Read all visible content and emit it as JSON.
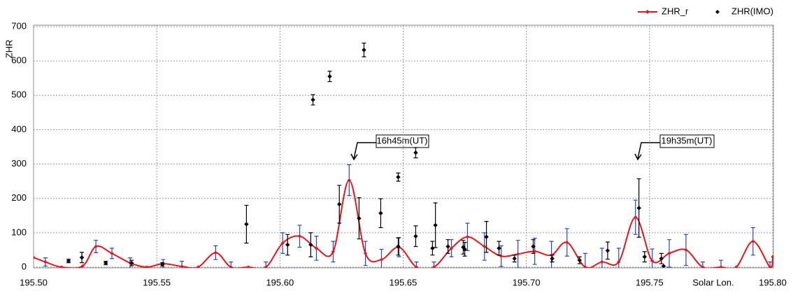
{
  "chart_data": {
    "type": "line",
    "y_label": "ZHR",
    "x_label": "Solar Lon.",
    "xlim": [
      195.5,
      195.8
    ],
    "ylim": [
      0,
      700
    ],
    "xticks": [
      {
        "value": 195.5,
        "label": "195.50"
      },
      195.55,
      {
        "value": 195.6,
        "label": "195.60"
      },
      195.65,
      {
        "value": 195.7,
        "label": "195.70"
      },
      195.75,
      {
        "value": 195.8,
        "label": "195.80"
      }
    ],
    "yticks": [
      0,
      100,
      200,
      300,
      400,
      500,
      600,
      700
    ],
    "grid": true,
    "legend": "top-right",
    "annotations": [
      "16h45m(UT)",
      "19h35m(UT)"
    ],
    "series": [
      {
        "name": "ZHR_r",
        "type": "line",
        "color": "#e8141a",
        "error_color": "#2444d4",
        "x": [
          195.5,
          195.5048,
          195.5114,
          195.5199,
          195.5253,
          195.5318,
          195.5392,
          195.546,
          195.5526,
          195.5602,
          195.5668,
          195.5739,
          195.5801,
          195.5872,
          195.5943,
          195.6011,
          195.608,
          195.6148,
          195.6216,
          195.6281,
          195.6347,
          195.6412,
          195.6483,
          195.6554,
          195.6625,
          195.6696,
          195.6761,
          195.683,
          195.6898,
          195.6966,
          195.7034,
          195.7102,
          195.7165,
          195.7239,
          195.7307,
          195.7375,
          195.7443,
          195.7511,
          195.758,
          195.7648,
          195.7716,
          195.779,
          195.7852,
          195.792,
          195.7989,
          195.8
        ],
        "values": [
          28,
          15,
          0,
          3,
          60,
          40,
          12,
          0,
          10,
          2,
          0,
          42,
          0,
          0,
          0,
          70,
          90,
          55,
          45,
          253,
          40,
          22,
          58,
          0,
          0,
          55,
          88,
          60,
          32,
          38,
          46,
          35,
          72,
          0,
          15,
          15,
          145,
          18,
          40,
          50,
          0,
          0,
          0,
          75,
          0,
          30
        ],
        "errors": [
          null,
          12,
          null,
          null,
          18,
          15,
          15,
          null,
          12,
          15,
          null,
          20,
          15,
          null,
          15,
          30,
          32,
          35,
          30,
          45,
          35,
          30,
          28,
          15,
          15,
          25,
          40,
          40,
          30,
          40,
          38,
          40,
          40,
          40,
          40,
          40,
          50,
          35,
          40,
          45,
          15,
          20,
          null,
          40,
          15,
          null
        ]
      },
      {
        "name": "ZHR(IMO)",
        "type": "scatter",
        "color": "#000000",
        "error_color": "#000000",
        "x": [
          195.5142,
          195.5196,
          195.5293,
          195.5398,
          195.5523,
          195.5864,
          195.6031,
          195.6125,
          195.6134,
          195.6202,
          195.6241,
          195.6321,
          195.6341,
          195.6409,
          195.648,
          195.648,
          195.6551,
          195.6551,
          195.6619,
          195.6631,
          195.6682,
          195.6744,
          195.675,
          195.6838,
          195.6889,
          195.6952,
          195.7028,
          195.7105,
          195.7216,
          195.733,
          195.7457,
          195.748,
          195.7548,
          195.7557
        ],
        "values": [
          18,
          28,
          12,
          12,
          8,
          125,
          65,
          65,
          487,
          555,
          183,
          142,
          632,
          157,
          262,
          60,
          333,
          90,
          55,
          122,
          60,
          58,
          52,
          88,
          55,
          25,
          60,
          25,
          20,
          48,
          172,
          30,
          25,
          3
        ],
        "errors": [
          5,
          15,
          5,
          8,
          5,
          55,
          30,
          35,
          15,
          15,
          55,
          60,
          20,
          42,
          12,
          25,
          15,
          30,
          20,
          65,
          20,
          20,
          20,
          45,
          20,
          10,
          20,
          10,
          10,
          25,
          85,
          15,
          15,
          null
        ]
      }
    ]
  }
}
